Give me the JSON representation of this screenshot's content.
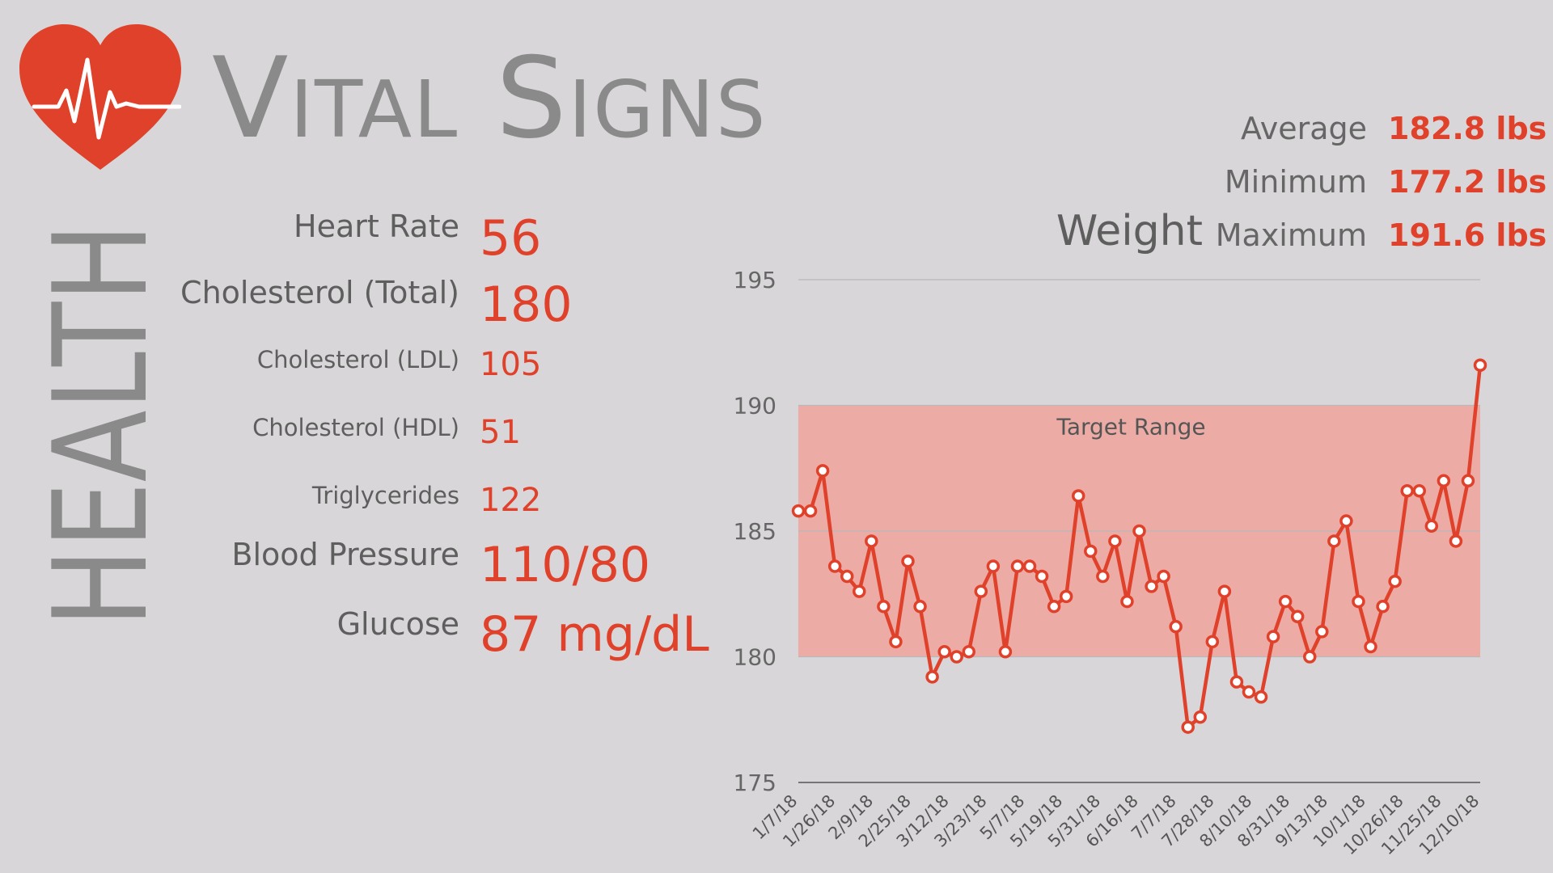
{
  "header": {
    "title": "Vital Signs",
    "side_label": "HEALTH",
    "heart_icon": "heart-pulse-icon"
  },
  "colors": {
    "accent": "#e0412b",
    "target_band": "#ecaca5",
    "background": "#d8d6d8",
    "text_gray": "#6f6f6f"
  },
  "metrics": [
    {
      "label": "Heart Rate",
      "value": "56"
    },
    {
      "label": "Cholesterol (Total)",
      "value": "180"
    },
    {
      "label": "Cholesterol (LDL)",
      "value": "105"
    },
    {
      "label": "Cholesterol (HDL)",
      "value": "51"
    },
    {
      "label": "Triglycerides",
      "value": "122"
    },
    {
      "label": "Blood Pressure",
      "value": "110/80"
    },
    {
      "label": "Glucose",
      "value": "87 mg/dL"
    }
  ],
  "weight_stats": {
    "title": "Weight",
    "average_label": "Average",
    "average_value": "182.8 lbs",
    "minimum_label": "Minimum",
    "minimum_value": "177.2 lbs",
    "maximum_label": "Maximum",
    "maximum_value": "191.6 lbs"
  },
  "chart_data": {
    "type": "line",
    "title": "",
    "xlabel": "",
    "ylabel": "",
    "ylim": [
      175,
      195
    ],
    "yticks": [
      175,
      180,
      185,
      190,
      195
    ],
    "grid": true,
    "x_tick_labels": [
      "1/7/18",
      "1/26/18",
      "2/9/18",
      "2/25/18",
      "3/12/18",
      "3/23/18",
      "5/7/18",
      "5/19/18",
      "5/31/18",
      "6/16/18",
      "7/7/18",
      "7/28/18",
      "8/10/18",
      "8/31/18",
      "9/13/18",
      "10/1/18",
      "10/26/18",
      "11/25/18",
      "12/10/18"
    ],
    "target_range": {
      "label": "Target Range",
      "low": 180,
      "high": 190
    },
    "series": [
      {
        "values": [
          185.8,
          185.8,
          187.4,
          183.6,
          183.2,
          182.6,
          184.6,
          182.0,
          180.6,
          183.8,
          182.0,
          179.2,
          180.2,
          180.0,
          180.2,
          182.6,
          183.6,
          180.2,
          183.6,
          183.6,
          183.2,
          182.0,
          182.4,
          186.4,
          184.2,
          183.2,
          184.6,
          182.2,
          185.0,
          182.8,
          183.2,
          181.2,
          177.2,
          177.6,
          180.6,
          182.6,
          179.0,
          178.6,
          178.4,
          180.8,
          182.2,
          181.6,
          180.0,
          181.0,
          184.6,
          185.4,
          182.2,
          180.4,
          182.0,
          183.0,
          186.6,
          186.6,
          185.2,
          187.0,
          184.6,
          187.0,
          191.6
        ]
      }
    ]
  }
}
